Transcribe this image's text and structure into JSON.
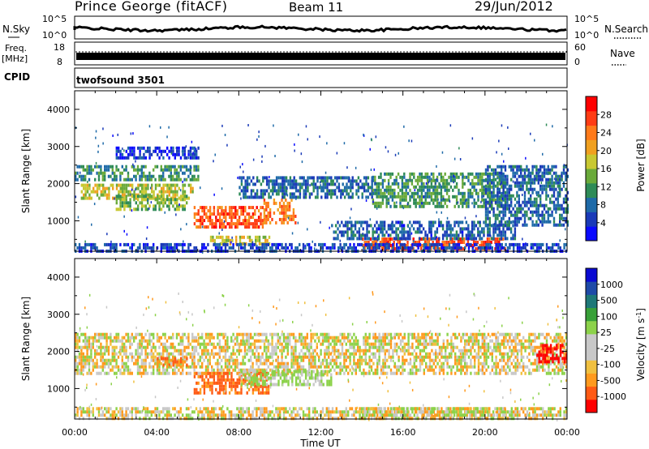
{
  "header": {
    "station": "Prince George (fitACF)",
    "beam": "Beam 11",
    "date": "29/Jun/2012"
  },
  "top_panels": {
    "nsky_label": "N.Sky",
    "nsky_ticks": [
      "10^5",
      "10^0"
    ],
    "nsearch_label": "N.Search",
    "nsearch_ticks": [
      "10^5",
      "10^0"
    ],
    "freq_label": "Freq.",
    "freq_unit": "[MHz]",
    "freq_ticks": [
      "18",
      "8"
    ],
    "nave_label": "Nave",
    "nave_ticks": [
      "60",
      "0"
    ],
    "cpid_label": "CPID",
    "cpid_value": "twofsound 3501"
  },
  "chart_data": [
    {
      "type": "heatmap",
      "name": "power",
      "ylabel": "Slant Range [km]",
      "yticks": [
        1000,
        2000,
        3000,
        4000
      ],
      "ylim": [
        180,
        4500
      ],
      "xlim": [
        0,
        24
      ],
      "colorbar_label": "Power [dB]",
      "colorbar_ticks": [
        "4",
        "8",
        "12",
        "16",
        "20",
        "24",
        "28"
      ],
      "colorbar_colors": [
        "#0a0aff",
        "#1a3ab8",
        "#1e6aa8",
        "#2e8b57",
        "#6aaa3a",
        "#c8c832",
        "#f0a020",
        "#ff7a1a",
        "#ff3c14",
        "#ff0000"
      ],
      "echo_bands": [
        {
          "t0": 0.0,
          "t1": 6.0,
          "r0": 2150,
          "r1": 2500,
          "db": 11
        },
        {
          "t0": 0.3,
          "t1": 5.8,
          "r0": 1650,
          "r1": 2000,
          "db": 17
        },
        {
          "t0": 2.0,
          "t1": 5.5,
          "r0": 1300,
          "r1": 1700,
          "db": 15
        },
        {
          "t0": 5.8,
          "t1": 9.2,
          "r0": 800,
          "r1": 1400,
          "db": 26
        },
        {
          "t0": 9.2,
          "t1": 10.8,
          "r0": 950,
          "r1": 1600,
          "db": 24
        },
        {
          "t0": 6.5,
          "t1": 9.5,
          "r0": 350,
          "r1": 600,
          "db": 18
        },
        {
          "t0": 8.0,
          "t1": 14.5,
          "r0": 1600,
          "r1": 2200,
          "db": 8
        },
        {
          "t0": 14.0,
          "t1": 21.0,
          "r0": 250,
          "r1": 550,
          "db": 26
        },
        {
          "t0": 12.5,
          "t1": 21.5,
          "r0": 550,
          "r1": 1000,
          "db": 7
        },
        {
          "t0": 14.5,
          "t1": 21.0,
          "r0": 1400,
          "r1": 2300,
          "db": 12
        },
        {
          "t0": 20.0,
          "t1": 24.0,
          "r0": 900,
          "r1": 2500,
          "db": 8
        },
        {
          "t0": 0.0,
          "t1": 24.0,
          "r0": 180,
          "r1": 400,
          "db": 5
        },
        {
          "t0": 2.0,
          "t1": 6.0,
          "r0": 2700,
          "r1": 3000,
          "db": 4
        }
      ]
    },
    {
      "type": "heatmap",
      "name": "velocity",
      "xlabel": "Time UT",
      "xticks": [
        "00:00",
        "04:00",
        "08:00",
        "12:00",
        "16:00",
        "20:00",
        "00:00"
      ],
      "xlim": [
        0,
        24
      ],
      "ylabel": "Slant Range [km]",
      "yticks": [
        1000,
        2000,
        3000,
        4000
      ],
      "ylim": [
        180,
        4500
      ],
      "colorbar_label": "Velocity [m s^-1]",
      "colorbar_ticks": [
        "-1000",
        "-500",
        "-100",
        "-25",
        "25",
        "100",
        "500",
        "1000"
      ],
      "colorbar_colors": [
        "#ff0000",
        "#ff5a14",
        "#ff9a1e",
        "#f0c040",
        "#c8c8c8",
        "#c8c8c8",
        "#8cd24a",
        "#38a038",
        "#1e7878",
        "#1e4aa8",
        "#0a0ad2"
      ],
      "echo_bands": [
        {
          "t0": 0.0,
          "t1": 24.0,
          "r0": 1400,
          "r1": 2500,
          "v": 0
        },
        {
          "t0": 0.0,
          "t1": 24.0,
          "r0": 180,
          "r1": 500,
          "v": 0
        },
        {
          "t0": 5.8,
          "t1": 9.5,
          "r0": 850,
          "r1": 1450,
          "v": -350
        },
        {
          "t0": 8.0,
          "t1": 12.5,
          "r0": 1150,
          "r1": 1500,
          "v": 120
        },
        {
          "t0": 4.0,
          "t1": 5.5,
          "r0": 1650,
          "r1": 1850,
          "v": -350
        },
        {
          "t0": 14.0,
          "t1": 21.0,
          "r0": 220,
          "r1": 500,
          "v": 0
        },
        {
          "t0": 22.5,
          "t1": 24.0,
          "r0": 1700,
          "r1": 2200,
          "v": -800
        }
      ]
    }
  ]
}
